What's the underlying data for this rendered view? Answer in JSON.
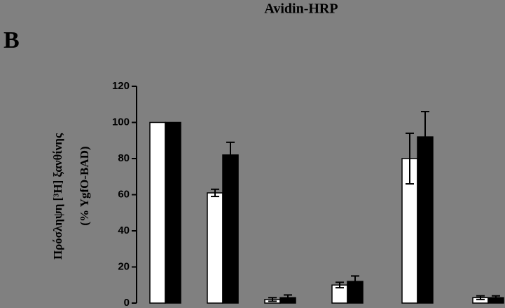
{
  "chart_data": {
    "type": "bar",
    "title": "Avidin-HRP",
    "panel": "B",
    "ylabel": [
      "Πρόσληψη [³H] ξανθίνης",
      "(% YgfO-BAD)"
    ],
    "categories": [
      null,
      null,
      null,
      null,
      null,
      null
    ],
    "series": [
      {
        "color": "#ffffff",
        "values": [
          100,
          61,
          2,
          10,
          80,
          3
        ],
        "errors": [
          0,
          2,
          1,
          1.5,
          14,
          1
        ]
      },
      {
        "color": "#000000",
        "values": [
          100,
          82,
          3,
          12,
          92,
          3
        ],
        "errors": [
          0,
          7,
          1.5,
          3,
          14,
          1
        ]
      }
    ],
    "ylim": [
      0,
      120
    ],
    "yticks": [
      0,
      20,
      40,
      60,
      80,
      100,
      120
    ]
  }
}
